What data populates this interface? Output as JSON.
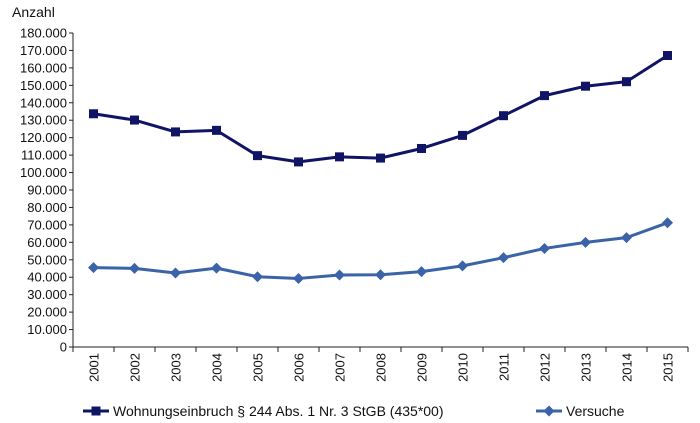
{
  "chart_data": {
    "type": "line",
    "title": "",
    "xlabel": "",
    "ylabel": "Anzahl",
    "categories": [
      "2001",
      "2002",
      "2003",
      "2004",
      "2005",
      "2006",
      "2007",
      "2008",
      "2009",
      "2010",
      "2011",
      "2012",
      "2013",
      "2014",
      "2015"
    ],
    "ylim": [
      0,
      180000
    ],
    "yticks": [
      "0",
      "10.000",
      "20.000",
      "30.000",
      "40.000",
      "50.000",
      "60.000",
      "70.000",
      "80.000",
      "90.000",
      "100.000",
      "110.000",
      "120.000",
      "130.000",
      "140.000",
      "150.000",
      "160.000",
      "170.000",
      "180.000"
    ],
    "grid": false,
    "legend_position": "bottom",
    "series": [
      {
        "name": "Wohnungseinbruch § 244 Abs. 1 Nr. 3 StGB (435*00)",
        "color": "#0f1464",
        "marker": "square",
        "values": [
          133700,
          130100,
          123300,
          124200,
          109700,
          106100,
          109000,
          108300,
          113800,
          121300,
          132600,
          144100,
          149500,
          152100,
          167100
        ]
      },
      {
        "name": "Versuche",
        "color": "#3b63a8",
        "marker": "diamond",
        "values": [
          45500,
          45100,
          42400,
          45200,
          40300,
          39300,
          41300,
          41400,
          43200,
          46500,
          51200,
          56500,
          60000,
          62700,
          71200
        ]
      }
    ]
  }
}
